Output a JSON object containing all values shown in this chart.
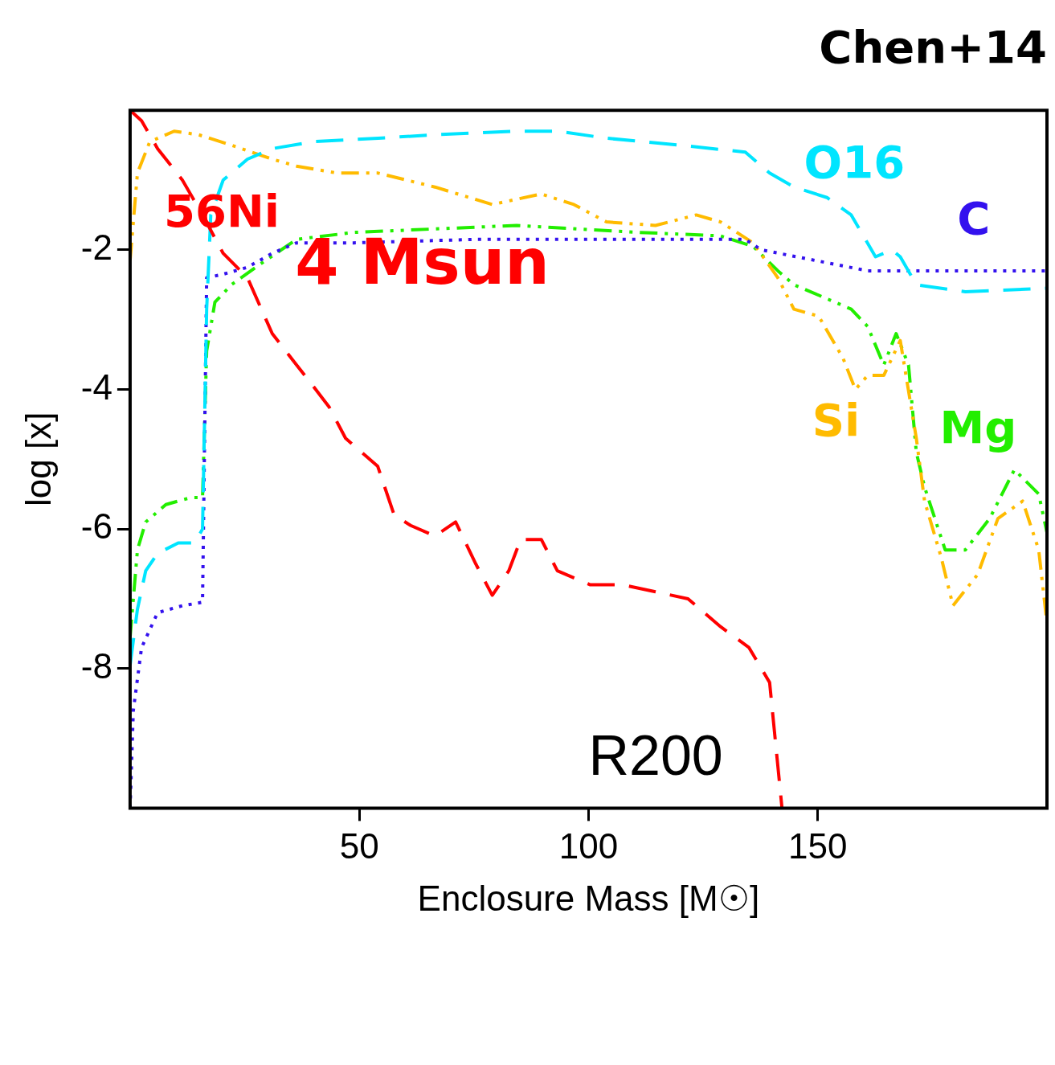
{
  "chart_data": {
    "type": "line",
    "title": "Chen+14",
    "xlabel": "Enclosure Mass [M☉]",
    "ylabel": "log [x]",
    "annotations": [
      "4 Msun",
      "R200"
    ],
    "xlim": [
      0,
      200
    ],
    "ylim": [
      -10,
      0
    ],
    "xticks": [
      50,
      100,
      150
    ],
    "yticks": [
      -8,
      -6,
      -4,
      -2
    ],
    "grid": false,
    "legend": false,
    "marker": "none",
    "series": [
      {
        "name": "56Ni",
        "color": "#ff0000",
        "line_style": "dashed",
        "x": [
          0,
          2.5,
          6,
          11.4,
          15.8,
          20.3,
          25.6,
          31,
          36.3,
          39.9,
          43.4,
          47,
          50.5,
          54,
          57.6,
          61.2,
          66.5,
          71,
          75.4,
          79,
          82.6,
          85.2,
          89.7,
          93.2,
          100.4,
          107.5,
          114.6,
          121.7,
          128.8,
          135,
          139.5,
          142.2
        ],
        "values": [
          0,
          -0.15,
          -0.55,
          -1.0,
          -1.5,
          -2.05,
          -2.4,
          -3.2,
          -3.65,
          -3.95,
          -4.25,
          -4.7,
          -4.9,
          -5.1,
          -5.8,
          -5.95,
          -6.1,
          -5.9,
          -6.5,
          -6.95,
          -6.6,
          -6.15,
          -6.15,
          -6.6,
          -6.8,
          -6.8,
          -6.9,
          -7.0,
          -7.4,
          -7.7,
          -8.2,
          -10
        ]
      },
      {
        "name": "O16",
        "color": "#00e5ff",
        "line_style": "dashed",
        "x": [
          0,
          1.6,
          3.4,
          6,
          10.5,
          14.1,
          15.8,
          16.7,
          17.6,
          20.3,
          25.6,
          31,
          39.9,
          54.1,
          66.5,
          84.3,
          93.2,
          103.9,
          119.9,
          134.2,
          139.5,
          144.8,
          152,
          157.3,
          162.6,
          164.4,
          166.2,
          168,
          171.5,
          182.2,
          200
        ],
        "values": [
          -7.95,
          -7.15,
          -6.6,
          -6.35,
          -6.2,
          -6.2,
          -6.0,
          -2.85,
          -1.5,
          -1.0,
          -0.7,
          -0.55,
          -0.45,
          -0.4,
          -0.35,
          -0.3,
          -0.3,
          -0.4,
          -0.5,
          -0.6,
          -0.9,
          -1.1,
          -1.25,
          -1.5,
          -2.1,
          -2.05,
          -2.0,
          -2.1,
          -2.5,
          -2.6,
          -2.55
        ]
      },
      {
        "name": "C",
        "color": "#3311ee",
        "line_style": "dotted",
        "x": [
          0,
          0.7,
          2.5,
          6,
          11.4,
          15.8,
          16.7,
          20.3,
          25.6,
          31,
          36.3,
          48.8,
          75.4,
          111,
          134.2,
          137.7,
          160.9,
          200
        ],
        "values": [
          -10,
          -8.6,
          -7.7,
          -7.2,
          -7.1,
          -7.05,
          -2.4,
          -2.35,
          -2.25,
          -2.05,
          -1.9,
          -1.9,
          -1.85,
          -1.85,
          -1.85,
          -2.0,
          -2.3,
          -2.3
        ]
      },
      {
        "name": "Si",
        "color": "#ffbb00",
        "line_style": "dashdot",
        "x": [
          0,
          1.6,
          4.3,
          9.6,
          14.9,
          22.1,
          31,
          36.3,
          45.2,
          54.1,
          66.5,
          79,
          89.7,
          96.8,
          103.9,
          114.6,
          123.5,
          128.8,
          135.9,
          141.3,
          144.8,
          150.2,
          155.5,
          158.2,
          160.9,
          164.4,
          168,
          171.5,
          173.3,
          176.9,
          179.5,
          184.9,
          189.3,
          194.7,
          198.2,
          200
        ],
        "values": [
          -2.15,
          -0.9,
          -0.45,
          -0.3,
          -0.35,
          -0.5,
          -0.7,
          -0.8,
          -0.9,
          -0.9,
          -1.1,
          -1.35,
          -1.2,
          -1.35,
          -1.6,
          -1.65,
          -1.5,
          -1.6,
          -1.9,
          -2.4,
          -2.85,
          -2.95,
          -3.55,
          -4.0,
          -3.8,
          -3.8,
          -3.3,
          -4.7,
          -5.6,
          -6.4,
          -7.1,
          -6.65,
          -5.85,
          -5.6,
          -6.3,
          -7.35
        ]
      },
      {
        "name": "Mg",
        "color": "#22ee00",
        "line_style": "dashdot",
        "x": [
          0,
          1.6,
          3.4,
          7.8,
          13.2,
          15.8,
          16.7,
          18.5,
          22.1,
          27.4,
          36.3,
          48.8,
          66.5,
          84.3,
          111,
          128.8,
          135.9,
          141.3,
          144.8,
          150.2,
          157.3,
          160.9,
          164.4,
          167.1,
          169.8,
          171.5,
          173.3,
          177.8,
          182.2,
          187.5,
          192.9,
          198.2,
          200
        ],
        "values": [
          -7.55,
          -6.3,
          -5.9,
          -5.65,
          -5.55,
          -5.55,
          -3.45,
          -2.75,
          -2.5,
          -2.25,
          -1.85,
          -1.75,
          -1.7,
          -1.65,
          -1.75,
          -1.8,
          -1.95,
          -2.3,
          -2.5,
          -2.65,
          -2.85,
          -3.1,
          -3.65,
          -3.2,
          -3.65,
          -4.9,
          -5.4,
          -6.3,
          -6.3,
          -5.85,
          -5.15,
          -5.5,
          -6.05
        ]
      }
    ]
  }
}
